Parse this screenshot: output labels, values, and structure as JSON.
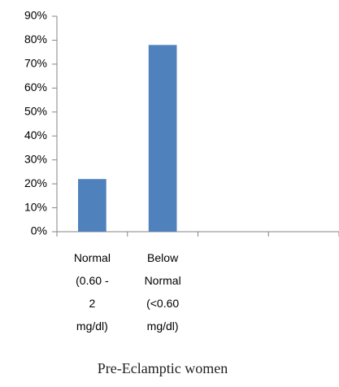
{
  "chart_data": {
    "type": "bar",
    "title": "Pre-Eclamptic women",
    "categories": [
      "Normal (0.60 - 2 mg/dl)",
      "Below Normal (<0.60 mg/dl)",
      null,
      null
    ],
    "values": [
      22,
      78,
      null,
      null
    ],
    "color": "#4f81bd",
    "ylim": [
      0,
      90
    ],
    "yticks": [
      {
        "value": 0,
        "label": "0%"
      },
      {
        "value": 10,
        "label": "10%"
      },
      {
        "value": 20,
        "label": "20%"
      },
      {
        "value": 30,
        "label": "30%"
      },
      {
        "value": 40,
        "label": "40%"
      },
      {
        "value": 50,
        "label": "50%"
      },
      {
        "value": 60,
        "label": "60%"
      },
      {
        "value": 70,
        "label": "70%"
      },
      {
        "value": 80,
        "label": "80%"
      },
      {
        "value": 90,
        "label": "90%"
      }
    ],
    "grid": false
  }
}
